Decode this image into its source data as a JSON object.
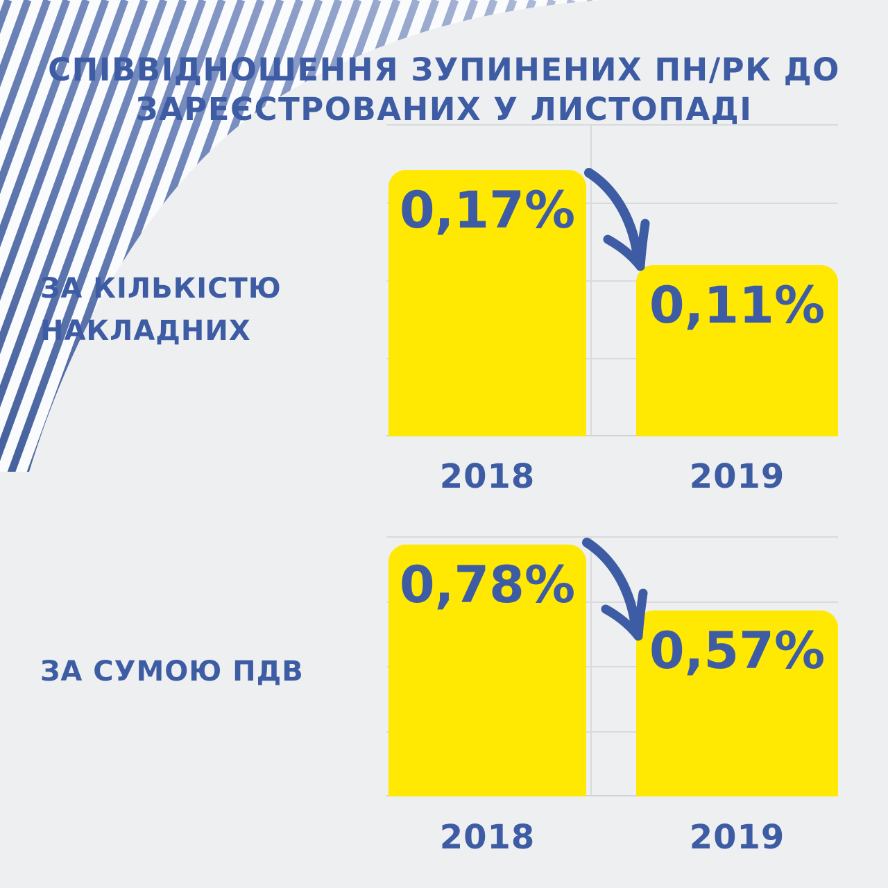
{
  "title": {
    "line1": "СПІВВІДНОШЕННЯ ЗУПИНЕНИХ ПН/РК ДО",
    "line2": "ЗАРЕЄСТРОВАНИХ У ЛИСТОПАДІ"
  },
  "colors": {
    "background": "#edeff1",
    "accent_blue": "#3d5ca4",
    "arrow_blue": "#3e5fa8",
    "bar_yellow": "#ffe802",
    "gridline_gray": "#d8dadc",
    "stripe_dark_blue": "#47629e",
    "stripe_light_blue": "#b3bfda"
  },
  "charts": [
    {
      "section_label_lines": [
        "ЗА КІЛЬКІСТЮ",
        "НАКЛАДНИХ"
      ],
      "bars": [
        {
          "year": "2018",
          "value_label": "0,17%"
        },
        {
          "year": "2019",
          "value_label": "0,11%"
        }
      ]
    },
    {
      "section_label_lines": [
        "ЗА СУМОЮ ПДВ"
      ],
      "bars": [
        {
          "year": "2018",
          "value_label": "0,78%"
        },
        {
          "year": "2019",
          "value_label": "0,57%"
        }
      ]
    }
  ],
  "chart_data": [
    {
      "type": "bar",
      "title": "ЗА КІЛЬКІСТЮ НАКЛАДНИХ",
      "categories": [
        "2018",
        "2019"
      ],
      "values": [
        0.17,
        0.11
      ],
      "value_labels": [
        "0,17%",
        "0,11%"
      ],
      "unit": "%",
      "ylim": [
        0,
        0.2
      ],
      "grid_step": 0.05,
      "grid": "horizontal-on",
      "legend": "none",
      "annotation": "downward arrow from 2018 bar to 2019 bar"
    },
    {
      "type": "bar",
      "title": "ЗА СУМОЮ ПДВ",
      "categories": [
        "2018",
        "2019"
      ],
      "values": [
        0.78,
        0.57
      ],
      "value_labels": [
        "0,78%",
        "0,57%"
      ],
      "unit": "%",
      "ylim": [
        0,
        0.8
      ],
      "grid_step": 0.2,
      "grid": "horizontal-on",
      "legend": "none",
      "annotation": "downward arrow from 2018 bar to 2019 bar"
    }
  ]
}
